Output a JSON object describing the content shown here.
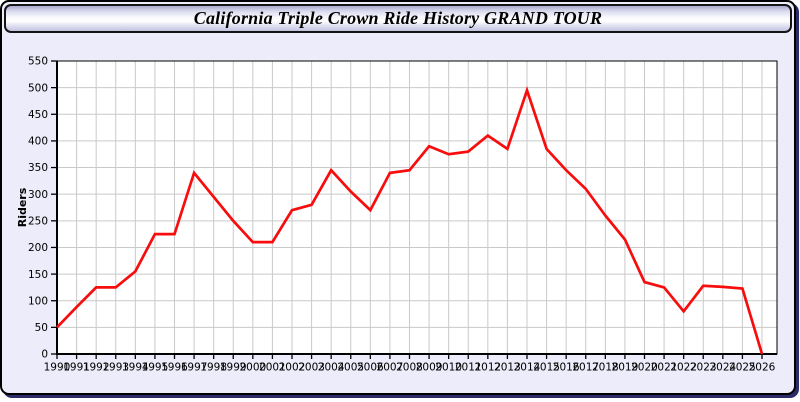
{
  "window": {
    "title": "California Triple Crown Ride History GRAND TOUR"
  },
  "theme": {
    "panel_background": "#ececfa",
    "panel_border": "#000000",
    "panel_shadow": "#2b2b68",
    "titlebar_gradient_top": "#a9a9cf",
    "titlebar_gradient_bottom": "#c2c2e0",
    "plot_background": "#ffffff",
    "grid_color": "#c9c9c9",
    "axis_color": "#000000",
    "label_color": "#000000",
    "line_color": "#f70d0d"
  },
  "chart_data": {
    "type": "line",
    "title": "California Triple Crown Ride History GRAND TOUR",
    "xlabel": "",
    "ylabel": "Riders",
    "ylim": [
      0,
      550
    ],
    "ytick_step": 50,
    "grid": true,
    "legend": "none",
    "x": [
      1990,
      1991,
      1992,
      1993,
      1994,
      1995,
      1996,
      1997,
      1998,
      1999,
      2000,
      2001,
      2002,
      2003,
      2004,
      2005,
      2006,
      2007,
      2008,
      2009,
      2010,
      2011,
      2012,
      2013,
      2014,
      2015,
      2016,
      2017,
      2018,
      2019,
      2020,
      2021,
      2022,
      2023,
      2024,
      2025,
      2026
    ],
    "series": [
      {
        "name": "Riders",
        "color": "#f70d0d",
        "values": [
          50,
          88,
          125,
          125,
          155,
          225,
          225,
          340,
          295,
          250,
          210,
          210,
          270,
          280,
          345,
          305,
          270,
          340,
          345,
          390,
          375,
          380,
          410,
          385,
          495,
          385,
          345,
          310,
          260,
          215,
          135,
          125,
          80,
          128,
          126,
          123,
          0
        ]
      }
    ]
  }
}
